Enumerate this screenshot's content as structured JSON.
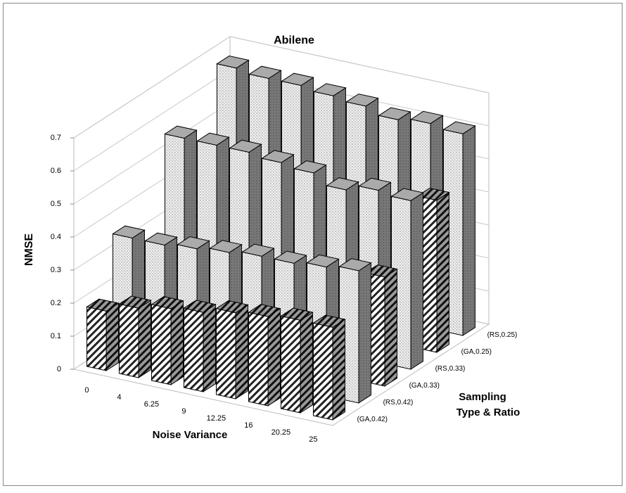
{
  "chart_data": {
    "type": "bar3d",
    "title": "Abilene",
    "y_label": "NMSE",
    "x_label": "Noise Variance",
    "z_label": [
      "Sampling",
      "Type & Ratio"
    ],
    "categories": [
      "0",
      "4",
      "6.25",
      "9",
      "12.25",
      "16",
      "20.25",
      "25"
    ],
    "series": [
      {
        "name": "(GA,0.42)",
        "pattern": "hatch",
        "values": [
          0.18,
          0.21,
          0.23,
          0.24,
          0.26,
          0.27,
          0.28,
          0.28
        ]
      },
      {
        "name": "(RS,0.42)",
        "pattern": "dots",
        "values": [
          0.35,
          0.35,
          0.36,
          0.37,
          0.38,
          0.38,
          0.39,
          0.4
        ]
      },
      {
        "name": "(GA,0.33)",
        "pattern": "hatch",
        "values": [
          0.25,
          0.27,
          0.27,
          0.28,
          0.29,
          0.3,
          0.31,
          0.33
        ]
      },
      {
        "name": "(RS,0.33)",
        "pattern": "dots",
        "values": [
          0.55,
          0.55,
          0.55,
          0.54,
          0.53,
          0.5,
          0.52,
          0.51
        ]
      },
      {
        "name": "(GA,0.25)",
        "pattern": "hatch",
        "values": [
          0.35,
          0.38,
          0.38,
          0.38,
          0.39,
          0.39,
          0.4,
          0.46
        ]
      },
      {
        "name": "(RS,0.25)",
        "pattern": "dots",
        "values": [
          0.66,
          0.65,
          0.65,
          0.64,
          0.63,
          0.61,
          0.62,
          0.61
        ]
      }
    ],
    "ylim": [
      0,
      0.7
    ],
    "yticks": [
      0,
      0.1,
      0.2,
      0.3,
      0.4,
      0.5,
      0.6,
      0.7
    ],
    "grid": true
  }
}
